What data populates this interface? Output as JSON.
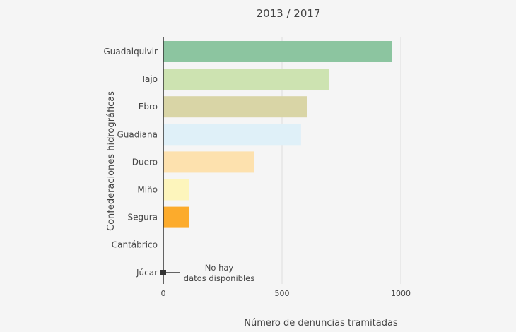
{
  "chart_data": {
    "type": "bar",
    "orientation": "horizontal",
    "title": "2013 / 2017",
    "xlabel": "Número de denuncias tramitadas",
    "ylabel": "Confederaciones hidrográficas",
    "xlim": [
      0,
      1000
    ],
    "xticks": [
      "0",
      "500",
      "1000"
    ],
    "grid": true,
    "categories": [
      "Guadalquivir",
      "Tajo",
      "Ebro",
      "Guadiana",
      "Duero",
      "Miño",
      "Segura",
      "Cantábrico",
      "Júcar"
    ],
    "values": [
      964,
      699,
      607,
      580,
      381,
      110,
      110,
      0,
      null
    ],
    "colors": [
      "#8cc5a0",
      "#cde3b1",
      "#d9d5a6",
      "#dff0f8",
      "#fde1ae",
      "#fdf5bc",
      "#fcab2c",
      "#cccccc",
      "#333333"
    ],
    "annotation": {
      "category": "Júcar",
      "line1": "No hay",
      "line2": "datos disponibles"
    }
  }
}
